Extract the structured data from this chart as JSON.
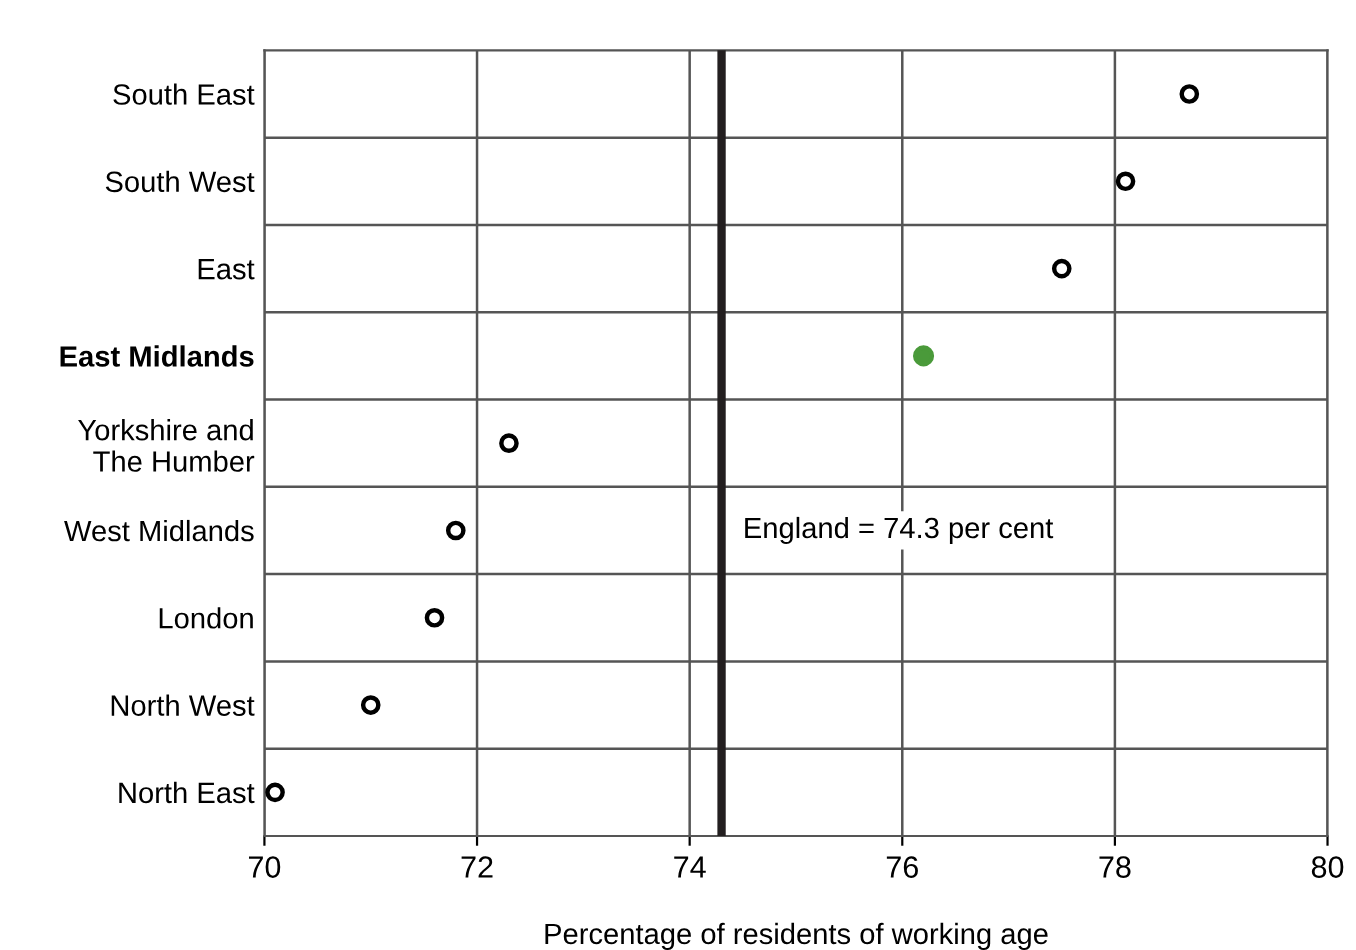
{
  "chart_data": {
    "type": "scatter",
    "xlabel": "Percentage of residents of working age",
    "categories": [
      "South East",
      "South West",
      "East",
      "East Midlands",
      "Yorkshire and\nThe Humber",
      "West Midlands",
      "London",
      "North West",
      "North East"
    ],
    "orientation": "horizontal",
    "series": [
      {
        "color": "#000000",
        "values": [
          78.7,
          78.1,
          77.5,
          null,
          72.3,
          71.8,
          71.6,
          71.0,
          70.1
        ]
      },
      {
        "color": "#4a9a3a",
        "values": [
          null,
          null,
          null,
          76.2,
          null,
          null,
          null,
          null,
          null
        ]
      }
    ],
    "xlim": [
      70,
      80
    ],
    "xticks": [
      70,
      72,
      74,
      76,
      78,
      80
    ],
    "ref_lines": [
      {
        "axis": "x",
        "value": 74.3,
        "label": "England = 74.3 per cent",
        "color": "#231f20"
      }
    ],
    "grid": true,
    "marker": "circle",
    "legend": false
  }
}
